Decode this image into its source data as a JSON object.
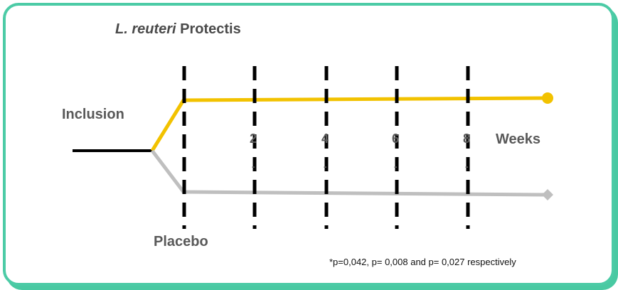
{
  "title": {
    "italic": "L. reuteri",
    "regular": " Protectis"
  },
  "inclusion_label": "Inclusion",
  "placebo_label": "Placebo",
  "weeks_label": "Weeks",
  "week_ticks": [
    {
      "label": "2",
      "mark": "-"
    },
    {
      "label": "4",
      "mark": "-"
    },
    {
      "label": "6",
      "mark": "-"
    },
    {
      "label": "8",
      "mark": "-"
    }
  ],
  "footnote": "*p=0,042,  p= 0,008 and p= 0,027 respectively",
  "colors": {
    "border": "#4ccba6",
    "treatment_arm": "#f2c200",
    "placebo_arm": "#bfbfbf",
    "baseline": "#000000",
    "dashed_lines": "#000000",
    "label_text": "#595959"
  }
}
